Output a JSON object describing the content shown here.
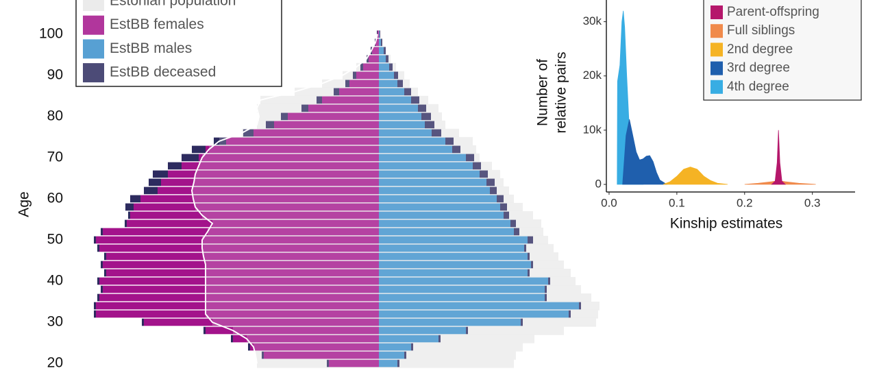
{
  "chart_data": [
    {
      "type": "pyramid",
      "ylabel": "Age",
      "ylim": [
        17.5,
        108.3
      ],
      "yticks": [
        20,
        30,
        40,
        50,
        60,
        70,
        80,
        90,
        100
      ],
      "xlim": [
        0,
        450
      ],
      "legend": [
        {
          "name": "Estonian population",
          "color": "#ebebeb"
        },
        {
          "name": "EstBB females",
          "color": "#a3138b"
        },
        {
          "name": "EstBB males",
          "color": "#3a8fcb"
        },
        {
          "name": "EstBB deceased",
          "color": "#2d2b5f"
        }
      ],
      "ages": [
        20,
        22,
        24,
        26,
        28,
        30,
        32,
        34,
        36,
        38,
        40,
        42,
        44,
        46,
        48,
        50,
        52,
        54,
        56,
        58,
        60,
        62,
        64,
        66,
        68,
        70,
        72,
        74,
        76,
        78,
        80,
        82,
        84,
        86,
        88,
        90,
        92,
        94,
        96,
        98,
        100
      ],
      "females": [
        73,
        168,
        188,
        213,
        253,
        343,
        413,
        413,
        408,
        403,
        408,
        398,
        403,
        398,
        408,
        413,
        403,
        368,
        363,
        358,
        348,
        323,
        318,
        308,
        288,
        263,
        253,
        223,
        183,
        153,
        133,
        103,
        83,
        58,
        43,
        33,
        23,
        15,
        10,
        5,
        2
      ],
      "males": [
        27,
        37,
        47,
        87,
        127,
        207,
        277,
        292,
        242,
        242,
        247,
        217,
        222,
        217,
        212,
        217,
        197,
        192,
        182,
        177,
        172,
        162,
        157,
        147,
        137,
        127,
        107,
        97,
        77,
        67,
        62,
        57,
        47,
        37,
        27,
        22,
        15,
        10,
        7,
        3,
        1
      ],
      "deceased_females": [
        3,
        3,
        3,
        3,
        3,
        3,
        3,
        3,
        3,
        3,
        3,
        3,
        3,
        3,
        3,
        3,
        3,
        3,
        3,
        12,
        15,
        20,
        18,
        22,
        20,
        25,
        20,
        18,
        15,
        12,
        10,
        10,
        8,
        8,
        6,
        5,
        4,
        3,
        2,
        1,
        1
      ],
      "deceased_males": [
        3,
        3,
        3,
        3,
        3,
        3,
        3,
        3,
        3,
        3,
        3,
        3,
        3,
        3,
        3,
        8,
        8,
        8,
        8,
        10,
        10,
        10,
        12,
        12,
        12,
        12,
        12,
        12,
        14,
        14,
        14,
        12,
        12,
        10,
        8,
        6,
        5,
        4,
        3,
        2,
        1
      ],
      "population_females": [
        178,
        180,
        183,
        193,
        213,
        243,
        253,
        253,
        253,
        253,
        253,
        253,
        253,
        256,
        258,
        258,
        250,
        243,
        258,
        268,
        271,
        273,
        270,
        268,
        263,
        258,
        248,
        233,
        200,
        178,
        175,
        178,
        173,
        123,
        83,
        53,
        33,
        18,
        11,
        5,
        2
      ],
      "population_males": [
        197,
        200,
        210,
        227,
        270,
        317,
        320,
        322,
        310,
        295,
        287,
        280,
        270,
        262,
        255,
        247,
        240,
        237,
        225,
        210,
        197,
        190,
        182,
        177,
        165,
        147,
        142,
        137,
        117,
        97,
        92,
        87,
        72,
        57,
        45,
        37,
        25,
        17,
        10,
        5,
        2
      ]
    },
    {
      "type": "density",
      "xlabel": "Kinship estimates",
      "ylabel_lines": [
        "Number of",
        "relative pairs"
      ],
      "xlim": [
        -0.004,
        0.363
      ],
      "ylim": [
        -1400,
        34000
      ],
      "xticks": [
        {
          "value": 0,
          "label": "0.0"
        },
        0.1,
        0.2,
        0.3
      ],
      "yticks": [
        0,
        {
          "value": 10000,
          "label": "10k"
        },
        {
          "value": 20000,
          "label": "20k"
        },
        {
          "value": 30000,
          "label": "30k"
        }
      ],
      "series": [
        {
          "name": "Parent-offspring",
          "color": "#b5176b",
          "x": [
            0.24,
            0.245,
            0.248,
            0.25,
            0.252,
            0.255,
            0.26
          ],
          "values": [
            0,
            600,
            4000,
            10000,
            4000,
            600,
            0
          ]
        },
        {
          "name": "Full siblings",
          "color": "#f08a4b",
          "x": [
            0.2,
            0.22,
            0.24,
            0.25,
            0.26,
            0.28,
            0.3,
            0.305
          ],
          "values": [
            0,
            200,
            500,
            700,
            500,
            200,
            50,
            0
          ]
        },
        {
          "name": "2nd degree",
          "color": "#f5b324",
          "x": [
            0.08,
            0.09,
            0.1,
            0.11,
            0.12,
            0.13,
            0.14,
            0.15,
            0.16,
            0.175
          ],
          "values": [
            0,
            500,
            1500,
            2800,
            3200,
            2800,
            1500,
            700,
            200,
            0
          ]
        },
        {
          "name": "3rd degree",
          "color": "#1f5fad",
          "x": [
            0.02,
            0.025,
            0.03,
            0.035,
            0.04,
            0.045,
            0.05,
            0.055,
            0.06,
            0.065,
            0.07,
            0.075,
            0.085
          ],
          "values": [
            0,
            9000,
            12000,
            9000,
            6000,
            4500,
            4700,
            5200,
            5300,
            4200,
            2200,
            800,
            0
          ]
        },
        {
          "name": "4th degree",
          "color": "#38ade3",
          "x": [
            0.012,
            0.0125,
            0.016,
            0.019,
            0.021,
            0.023,
            0.026,
            0.03,
            0.035,
            0.04,
            0.05
          ],
          "values": [
            0,
            19000,
            22000,
            30000,
            32000,
            29000,
            20000,
            10000,
            4000,
            1500,
            0
          ]
        }
      ]
    }
  ]
}
